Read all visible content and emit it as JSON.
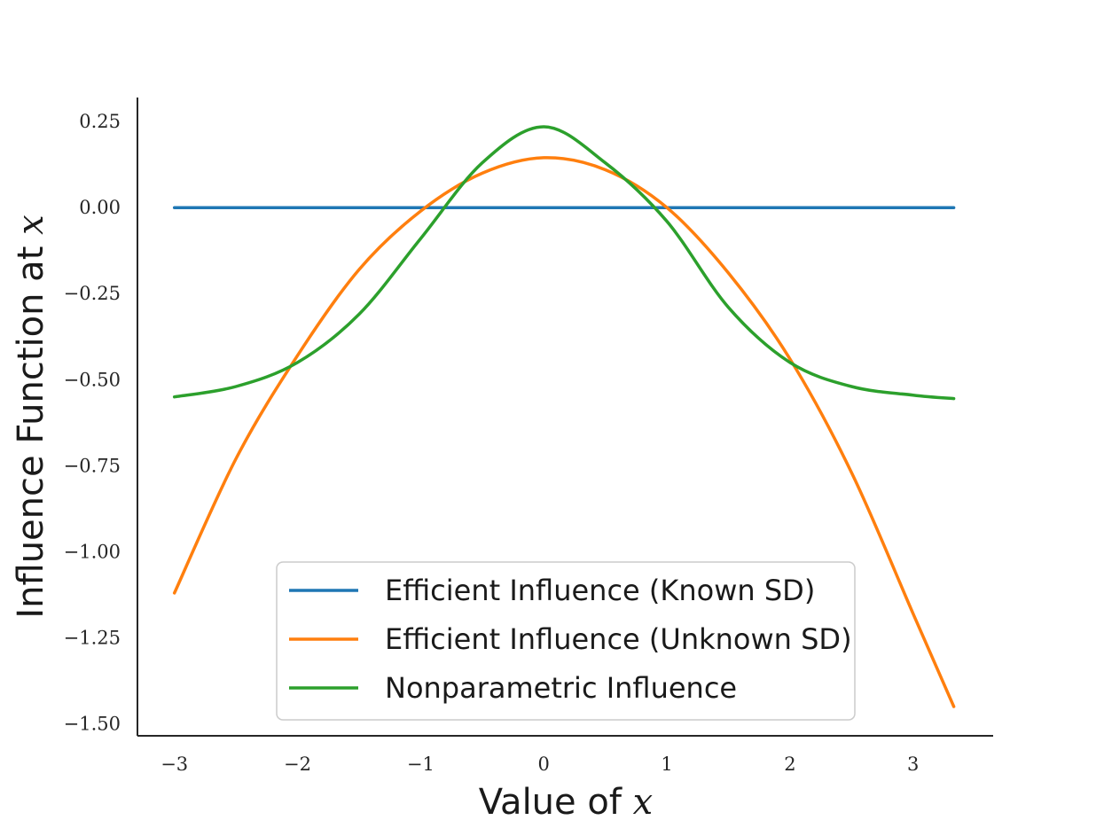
{
  "chart_data": {
    "type": "line",
    "title": "",
    "xlabel": {
      "text": "Value of ",
      "var": "x"
    },
    "ylabel": {
      "text": "Influence Function at ",
      "var": "x"
    },
    "xlim": [
      -3.3,
      3.65
    ],
    "ylim": [
      -1.535,
      0.32
    ],
    "xticks": [
      -3,
      -2,
      -1,
      0,
      1,
      2,
      3
    ],
    "xtick_labels": [
      "−3",
      "−2",
      "−1",
      "0",
      "1",
      "2",
      "3"
    ],
    "yticks": [
      0.25,
      0.0,
      -0.25,
      -0.5,
      -0.75,
      -1.0,
      -1.25,
      -1.5
    ],
    "ytick_labels": [
      "0.25",
      "0.00",
      "−0.25",
      "−0.50",
      "−0.75",
      "−1.00",
      "−1.25",
      "−1.50"
    ],
    "grid": false,
    "legend_position": "lower-center",
    "x": [
      -3.0,
      -2.5,
      -2.0,
      -1.5,
      -1.0,
      -0.5,
      0.0,
      0.5,
      1.0,
      1.5,
      2.0,
      2.5,
      3.0,
      3.33
    ],
    "series": [
      {
        "name": "Efficient Influence (Known SD)",
        "color": "#1f77b4",
        "values": [
          0.0,
          0.0,
          0.0,
          0.0,
          0.0,
          0.0,
          0.0,
          0.0,
          0.0,
          0.0,
          0.0,
          0.0,
          0.0,
          0.0
        ]
      },
      {
        "name": "Efficient Influence (Unknown SD)",
        "color": "#ff7f0e",
        "values": [
          -1.12,
          -0.73,
          -0.43,
          -0.18,
          -0.01,
          0.1,
          0.145,
          0.11,
          0.0,
          -0.19,
          -0.44,
          -0.77,
          -1.18,
          -1.45
        ]
      },
      {
        "name": "Nonparametric Influence",
        "color": "#2ca02c",
        "values": [
          -0.55,
          -0.52,
          -0.45,
          -0.31,
          -0.09,
          0.13,
          0.235,
          0.13,
          -0.04,
          -0.29,
          -0.45,
          -0.52,
          -0.545,
          -0.555
        ]
      }
    ]
  }
}
